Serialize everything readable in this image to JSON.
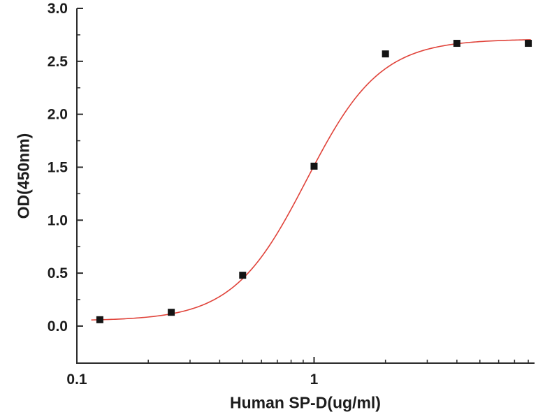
{
  "chart_data": {
    "type": "scatter",
    "title": "",
    "xlabel": "Human SP-D(ug/ml)",
    "ylabel": "OD(450nm)",
    "x_scale": "log",
    "xlim": [
      0.1,
      8.5
    ],
    "ylim": [
      -0.35,
      3.0
    ],
    "x_major_ticks": [
      0.1,
      1
    ],
    "x_major_tick_labels": [
      "0.1",
      "1"
    ],
    "x_minor_ticks": [
      0.2,
      0.3,
      0.4,
      0.5,
      0.6,
      0.7,
      0.8,
      0.9,
      2,
      3,
      4,
      5,
      6,
      7,
      8
    ],
    "y_major_ticks": [
      0.0,
      0.5,
      1.0,
      1.5,
      2.0,
      2.5,
      3.0
    ],
    "y_major_tick_labels": [
      "0.0",
      "0.5",
      "1.0",
      "1.5",
      "2.0",
      "2.5",
      "3.0"
    ],
    "y_minor_ticks": [
      0.25,
      0.75,
      1.25,
      1.75,
      2.25,
      2.75
    ],
    "points": {
      "x": [
        0.125,
        0.25,
        0.5,
        1,
        2,
        4,
        8
      ],
      "y": [
        0.06,
        0.13,
        0.48,
        1.51,
        2.57,
        2.67,
        2.67
      ]
    },
    "fit_curve": {
      "model": "4PL",
      "bottom": 0.05,
      "top": 2.71,
      "ec50": 0.93,
      "hill": 2.8,
      "x_start": 0.115,
      "x_end": 8.2,
      "color": "#e0433a"
    },
    "point_color": "#141414",
    "point_size": 10,
    "axis_color": "#2b2b2b",
    "grid": false,
    "legend": null
  }
}
